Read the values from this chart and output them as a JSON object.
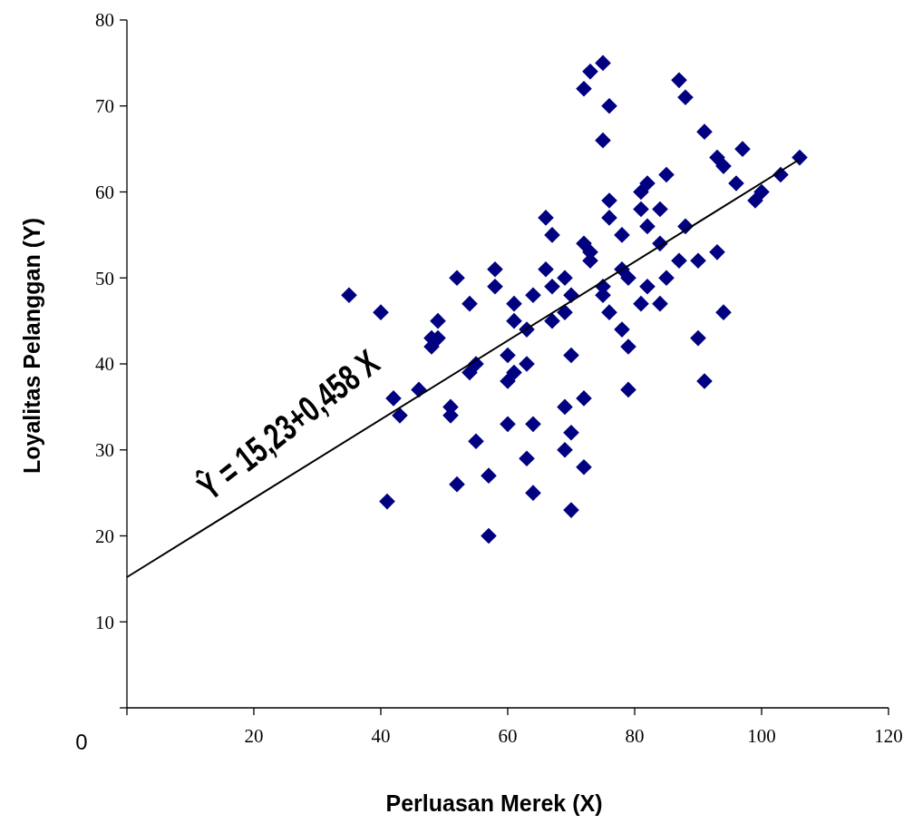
{
  "chart_data": {
    "type": "scatter",
    "xlabel": "Perluasan Merek (X)",
    "ylabel": "Loyalitas Pelanggan (Y)",
    "xlim": [
      0,
      120
    ],
    "xticks": [
      {
        "value": 0,
        "label": null
      },
      20,
      40,
      60,
      80,
      100,
      120
    ],
    "ylim": [
      0,
      80
    ],
    "yticks": [
      {
        "value": 0,
        "label": null
      },
      10,
      20,
      30,
      40,
      50,
      60,
      70,
      80
    ],
    "grid": false,
    "annotations": [
      "Ŷ = 15,23+0,458 X",
      "0"
    ],
    "series": [
      {
        "color": "#000080",
        "marker": "diamond",
        "x": [
          35,
          40,
          41,
          42,
          43,
          46,
          48,
          48,
          49,
          49,
          51,
          51,
          52,
          52,
          54,
          54,
          55,
          55,
          57,
          57,
          58,
          58,
          60,
          60,
          60,
          61,
          61,
          61,
          63,
          63,
          63,
          64,
          64,
          64,
          66,
          66,
          67,
          67,
          67,
          69,
          69,
          69,
          69,
          70,
          70,
          70,
          70,
          72,
          72,
          72,
          72,
          73,
          73,
          73,
          75,
          75,
          75,
          75,
          76,
          76,
          76,
          76,
          78,
          78,
          78,
          79,
          79,
          79,
          81,
          81,
          81,
          82,
          82,
          82,
          84,
          84,
          84,
          85,
          85,
          87,
          87,
          88,
          88,
          90,
          90,
          91,
          91,
          93,
          93,
          94,
          94,
          96,
          97,
          99,
          100,
          103,
          106
        ],
        "values": [
          48,
          46,
          24,
          36,
          34,
          37,
          42,
          43,
          43,
          45,
          35,
          34,
          50,
          26,
          47,
          39,
          40,
          31,
          27,
          20,
          51,
          49,
          41,
          38,
          33,
          47,
          45,
          39,
          44,
          40,
          29,
          48,
          33,
          25,
          57,
          51,
          55,
          49,
          45,
          50,
          46,
          35,
          30,
          48,
          41,
          32,
          23,
          72,
          54,
          36,
          28,
          74,
          53,
          52,
          75,
          66,
          49,
          48,
          70,
          59,
          57,
          46,
          55,
          51,
          44,
          50,
          42,
          37,
          60,
          58,
          47,
          61,
          56,
          49,
          58,
          54,
          47,
          62,
          50,
          73,
          52,
          71,
          56,
          52,
          43,
          67,
          38,
          64,
          53,
          63,
          46,
          61,
          65,
          59,
          60,
          62,
          64
        ]
      },
      {
        "type": "line",
        "color": "#000000",
        "line_style": "solid",
        "marker": "none",
        "x": [
          0,
          106
        ],
        "values": [
          15.2,
          63.8
        ]
      }
    ]
  }
}
